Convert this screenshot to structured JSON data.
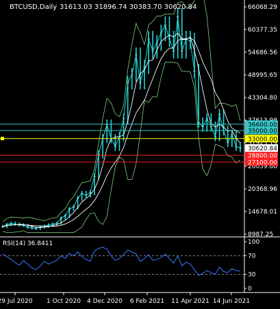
{
  "window": {
    "symbol": "BTCUSD,Daily",
    "ohlc": "31613.03 31896.74 30383.70 30620.84"
  },
  "colors": {
    "background": "#000000",
    "candle": "#22d8d8",
    "ma_fast": "#ffffff",
    "ma_slow": "#ffffff",
    "bands": "#7fd37f",
    "rsi": "#3a78ff",
    "level_cyan": "#38c6c6",
    "level_yellow": "#ffff00",
    "level_red": "#ff2020",
    "axis_text": "#ffffff",
    "grid": "#444444"
  },
  "chart_data": [
    {
      "type": "line",
      "name": "price",
      "y_axis_ticks": [
        "66068.29",
        "60377.35",
        "54686.56",
        "48995.65",
        "43304.80",
        "37613.98",
        "31923.19",
        "26059.86",
        "20368.96",
        "14678.01",
        "8987.25"
      ],
      "y_axis_tick_values": [
        66068.29,
        60377.35,
        54686.56,
        48995.65,
        43304.8,
        37613.98,
        31923.19,
        26059.86,
        20368.96,
        14678.01,
        8987.25
      ],
      "ylim": [
        8987.25,
        66068.29
      ],
      "x_axis_ticks": [
        "29 Jul 2020",
        "1 Oct 2020",
        "4 Dec 2020",
        "6 Feb 2021",
        "11 Apr 2021",
        "14 Jun 2021"
      ],
      "closes_sampled": [
        10900,
        11400,
        11700,
        11500,
        11300,
        11200,
        10700,
        10500,
        10400,
        10800,
        11000,
        11300,
        11500,
        11700,
        13000,
        13600,
        15300,
        15800,
        18000,
        19200,
        18800,
        19400,
        23500,
        29000,
        33000,
        36500,
        33000,
        31000,
        33500,
        38000,
        47000,
        49000,
        54000,
        47000,
        51000,
        58000,
        55000,
        57000,
        59500,
        61500,
        58000,
        55000,
        63500,
        55000,
        58000,
        57500,
        50000,
        37000,
        36000,
        38000,
        36000,
        33500,
        39000,
        35000,
        32000,
        34000,
        31000,
        30620.84
      ],
      "levels": [
        {
          "label": "36600.00",
          "value": 36600,
          "color": "cyan"
        },
        {
          "label": "35000.00",
          "value": 35000,
          "color": "cyan"
        },
        {
          "label": "33000.00",
          "value": 33000,
          "color": "yellow"
        },
        {
          "label": "28800.00",
          "value": 28800,
          "color": "red"
        },
        {
          "label": "27100.00",
          "value": 27100,
          "color": "red"
        }
      ],
      "current_price": {
        "label": "30620.84",
        "value": 30620.84
      },
      "current_price_marker": 33000
    },
    {
      "type": "line",
      "name": "RSI(14)",
      "title": "RSI(14) 36.8411",
      "y_axis_ticks": [
        "100",
        "70",
        "30",
        "0"
      ],
      "y_axis_tick_values": [
        100,
        70,
        30,
        0
      ],
      "ylim": [
        0,
        100
      ],
      "levels": [
        70,
        30
      ],
      "values": [
        74,
        68,
        62,
        55,
        50,
        60,
        52,
        44,
        40,
        48,
        58,
        52,
        56,
        60,
        70,
        64,
        75,
        70,
        78,
        68,
        62,
        58,
        80,
        86,
        88,
        84,
        70,
        60,
        64,
        72,
        82,
        78,
        74,
        58,
        64,
        72,
        60,
        62,
        66,
        74,
        64,
        54,
        70,
        48,
        56,
        52,
        40,
        28,
        32,
        38,
        34,
        30,
        46,
        36,
        34,
        42,
        38,
        36.8411
      ]
    }
  ]
}
